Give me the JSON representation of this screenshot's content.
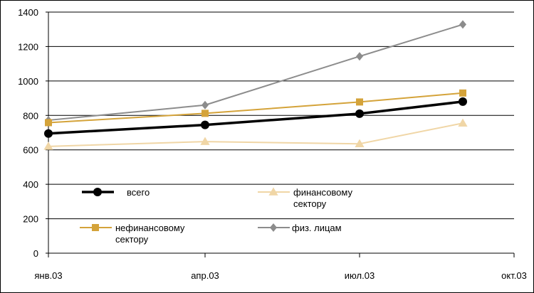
{
  "chart_data": {
    "type": "line",
    "categories": [
      "янв.03",
      "апр.03",
      "июл.03",
      "окт.03"
    ],
    "ylim": [
      0,
      1400
    ],
    "yticks": [
      0,
      200,
      400,
      600,
      800,
      1000,
      1200,
      1400
    ],
    "grid": "horizontal",
    "legend_placement": "inside-bottom",
    "series": [
      {
        "name": "всего",
        "color": "#000000",
        "marker": "circle",
        "values": [
          695,
          745,
          810,
          880
        ]
      },
      {
        "name": "финансовому сектору",
        "name_lines": [
          "финансовому",
          "сектору"
        ],
        "color": "#f0d6a6",
        "marker": "triangle",
        "values": [
          620,
          648,
          635,
          755
        ]
      },
      {
        "name": "нефинансовому сектору",
        "name_lines": [
          "нефинансовому",
          "сектору"
        ],
        "color": "#d4a33a",
        "marker": "square",
        "values": [
          758,
          812,
          878,
          930
        ]
      },
      {
        "name": "физ. лицам",
        "name_lines": [
          "физ. лицам"
        ],
        "color": "#8c8c8c",
        "marker": "diamond",
        "values": [
          772,
          860,
          1143,
          1328
        ]
      }
    ]
  }
}
